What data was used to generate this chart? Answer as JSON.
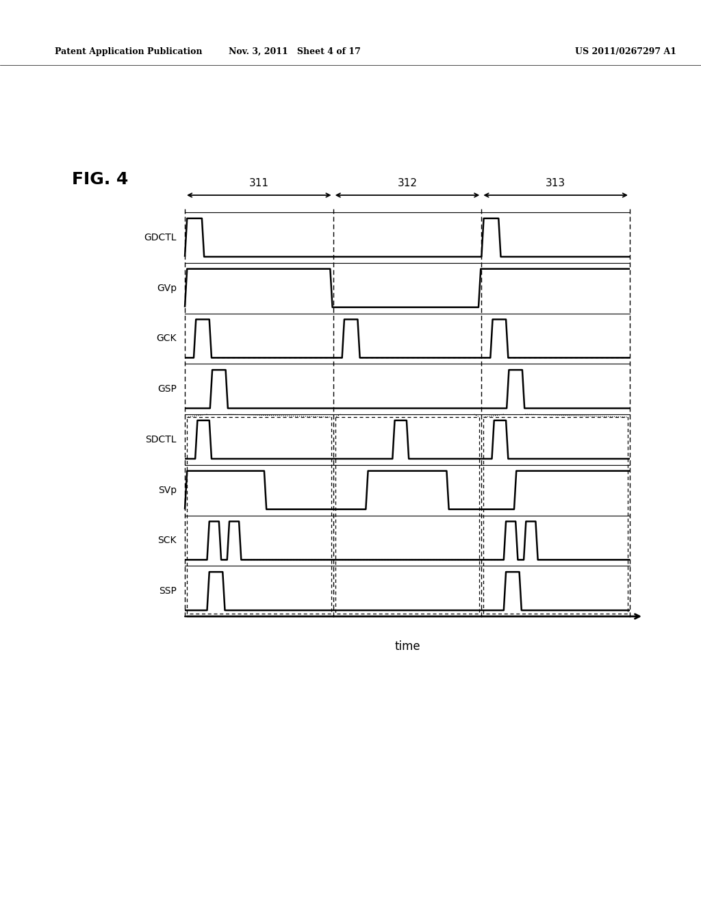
{
  "header_left": "Patent Application Publication",
  "header_mid": "Nov. 3, 2011   Sheet 4 of 17",
  "header_right": "US 2011/0267297 A1",
  "fig_label": "FIG. 4",
  "time_label": "time",
  "signal_labels": [
    "GDCTL",
    "GVp",
    "GCK",
    "GSP",
    "SDCTL",
    "SVp",
    "SCK",
    "SSP"
  ],
  "period_labels": [
    "311",
    "312",
    "313"
  ],
  "background": "#ffffff",
  "line_color": "#000000"
}
